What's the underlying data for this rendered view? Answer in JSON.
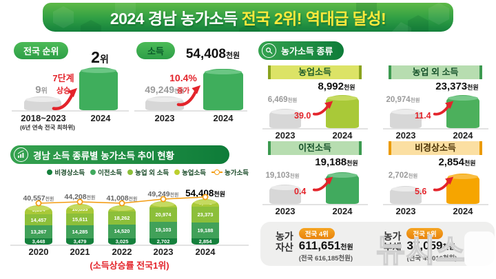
{
  "banner": {
    "title_white": "2024 경남 농가소득",
    "title_yellow": "전국 2위! 역대급 달성!"
  },
  "rank": {
    "badge": "전국 순위",
    "prev_rank": "9",
    "prev_suffix": "위",
    "new_rank": "2",
    "new_suffix": "위",
    "change_line1": "7단계",
    "change_line2": "상승",
    "prev_year": "2018~2023",
    "prev_note": "(6년 연속 전국 최하위)",
    "new_year": "2024"
  },
  "income": {
    "badge": "소득",
    "prev_value": "49,249",
    "new_value": "54,408",
    "unit": "천원",
    "change_line1": "10.4%",
    "change_line2": "증가",
    "prev_year": "2023",
    "new_year": "2024"
  },
  "types": {
    "header": "농가소득 종류",
    "prev_year": "2023",
    "new_year": "2024",
    "unit": "천원",
    "items": [
      {
        "title": "농업소득",
        "prev": "6,469",
        "new": "8,992",
        "pct": "39.0",
        "bar_color": "#a9c938",
        "cap_color": "#c5da60",
        "header_bg": "#dce366",
        "header_accent": "#8aa31e",
        "header_text": "#1d5c2a"
      },
      {
        "title": "농업 외 소득",
        "prev": "20,974",
        "new": "23,373",
        "pct": "11.4",
        "bar_color": "#4cb05c",
        "cap_color": "#78c98b",
        "header_bg": "#b7ddb0",
        "header_accent": "#3c9a50",
        "header_text": "#15512a"
      },
      {
        "title": "이전소득",
        "prev": "19,103",
        "new": "19,188",
        "pct": "0.4",
        "bar_color": "#41aa5e",
        "cap_color": "#6fc487",
        "header_bg": "#b7ddb0",
        "header_accent": "#3c9a50",
        "header_text": "#15512a"
      },
      {
        "title": "비경상소득",
        "prev": "2,702",
        "new": "2,854",
        "pct": "5.6",
        "bar_color": "#f6a500",
        "cap_color": "#f9bd40",
        "header_bg": "#fbdfa2",
        "header_accent": "#eb9a00",
        "header_text": "#4a3205"
      }
    ]
  },
  "trend": {
    "header": "경남 소득 종류별 농가소득 추이 현황",
    "caption": "(소득상승률 전국1위)",
    "legend": [
      {
        "label": "비경상소득",
        "color": "#15803c",
        "type": "dot"
      },
      {
        "label": "이전소득",
        "color": "#41aa5e",
        "type": "dot"
      },
      {
        "label": "농업 외 소득",
        "color": "#8cbf3a",
        "type": "dot"
      },
      {
        "label": "농업소득",
        "color": "#bccf2e",
        "type": "dot"
      },
      {
        "label": "농가소득",
        "color": "#f39c12",
        "type": "line"
      }
    ]
  },
  "chart_data": {
    "type": "bar",
    "subtype": "stacked-with-line",
    "title": "경남 소득 종류별 농가소득 추이 현황",
    "unit": "천원",
    "categories": [
      "2020",
      "2021",
      "2022",
      "2023",
      "2024"
    ],
    "series": [
      {
        "name": "농업소득",
        "color": "#a9c938",
        "cap_color": "#c5da60",
        "values": [
          9384,
          10833,
          5200,
          6469,
          8992
        ],
        "labels": [
          "9,384",
          "10,833",
          "5,200",
          "6,469",
          "8,992"
        ]
      },
      {
        "name": "농업 외 소득",
        "color": "#8cbf3a",
        "values": [
          14457,
          15611,
          18262,
          20974,
          23373
        ],
        "labels": [
          "14,457",
          "15,611",
          "18,262",
          "20,974",
          "23,373"
        ]
      },
      {
        "name": "이전소득",
        "color": "#41a159",
        "values": [
          13267,
          14285,
          14520,
          19103,
          19188
        ],
        "labels": [
          "13,267",
          "14,285",
          "14,520",
          "19,103",
          "19,188"
        ]
      },
      {
        "name": "비경상소득",
        "color": "#15803c",
        "values": [
          3448,
          3479,
          3025,
          2702,
          2854
        ],
        "labels": [
          "3,448",
          "3,479",
          "3,025",
          "2,702",
          "2,854"
        ]
      }
    ],
    "line_series": {
      "name": "농가소득",
      "color": "#f39c12",
      "values": [
        40557,
        44208,
        41008,
        49249,
        54408
      ],
      "labels": [
        "40,557",
        "44,208",
        "41,008",
        "49,249",
        "54,408"
      ]
    }
  },
  "assets": {
    "items": [
      {
        "label_line1": "농가",
        "label_line2": "자산",
        "badge": "전국 4위",
        "value": "611,651",
        "unit": "천원",
        "national": "(전국 616,185천원)"
      },
      {
        "label_line1": "농가",
        "label_line2": "부채",
        "badge": "전국 5위",
        "value": "37,059",
        "unit": "천원",
        "national": "(전국 45,016천원)"
      }
    ]
  },
  "watermark": "뉴시스"
}
